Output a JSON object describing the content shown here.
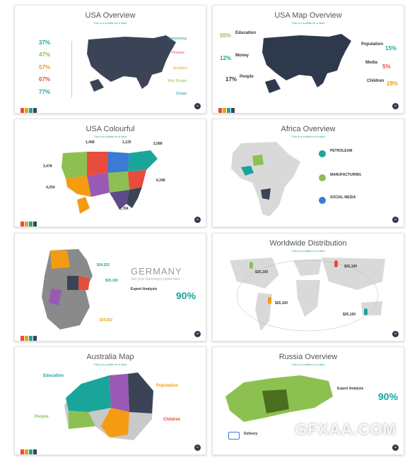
{
  "slides": {
    "usa_overview": {
      "title": "USA Overview",
      "subtitle": "This is a subtitle for a slide",
      "percents": [
        "37%",
        "47%",
        "57%",
        "67%",
        "77%"
      ],
      "labels": [
        "Networking",
        "Finance",
        "Analytics",
        "Web Design",
        "Design"
      ],
      "page": "01"
    },
    "usa_map_overview": {
      "title": "USA Map Overview",
      "subtitle": "This is a subtitle for a slide",
      "left_items": [
        {
          "pct": "55%",
          "label": "Education"
        },
        {
          "pct": "12%",
          "label": "Money"
        },
        {
          "pct": "17%",
          "label": "People"
        }
      ],
      "right_items": [
        {
          "pct": "15%",
          "label": "Population"
        },
        {
          "pct": "5%",
          "label": "Media"
        },
        {
          "pct": "28%",
          "label": "Children"
        }
      ],
      "page": "02"
    },
    "usa_colourful": {
      "title": "USA Colourful",
      "subtitle": "This is a subtitle for a slide",
      "values": [
        "1,458",
        "1,125",
        "2,589",
        "3,478",
        "6,348",
        "4,254",
        "2,784"
      ],
      "page": "03"
    },
    "africa_overview": {
      "title": "Africa Overview",
      "subtitle": "This is a subtitle for a slide",
      "items": [
        "PETROLEUM",
        "MANUFACTURING",
        "SOCIAL MEDIA"
      ],
      "page": "04"
    },
    "germany": {
      "title": "GERMANY",
      "subtitle": "Get your Germany's prime here",
      "section": "Expert Analysis",
      "pct": "90%",
      "values": [
        "$34,522",
        "$25,100",
        "$34,522"
      ],
      "page": "05"
    },
    "worldwide": {
      "title": "Worldwide Distribution",
      "subtitle": "This is a subtitle for a slide",
      "values": [
        "$25,100",
        "$25,100",
        "$25,100",
        "$25,100"
      ],
      "page": "06"
    },
    "australia": {
      "title": "Australia Map",
      "subtitle": "This is a subtitle for a slide",
      "labels": [
        "Education",
        "Population",
        "People",
        "Children"
      ],
      "page": "07"
    },
    "russia": {
      "title": "Russia Overview",
      "subtitle": "This is a subtitle for a slide",
      "section": "Expert Analysis",
      "pct": "90%",
      "delivery": "Delivery",
      "page": "08"
    }
  },
  "watermark": "GFXAA.COM",
  "colors": {
    "teal": "#1aa59b",
    "navy": "#3a4456",
    "orange": "#f39c12",
    "red": "#e74c3c",
    "green": "#8cc152"
  }
}
